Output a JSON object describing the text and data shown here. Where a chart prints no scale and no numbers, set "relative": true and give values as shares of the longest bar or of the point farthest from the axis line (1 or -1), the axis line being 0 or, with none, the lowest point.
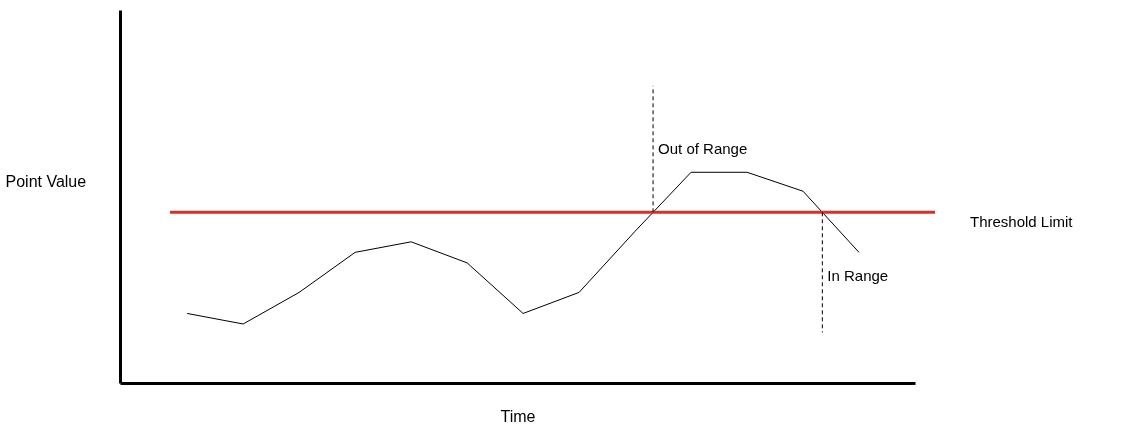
{
  "chart_data": {
    "type": "line",
    "relative": true,
    "xlabel": "Time",
    "ylabel": "Point Value",
    "categories": [
      null,
      null,
      null,
      null,
      null,
      null,
      null,
      null,
      null,
      null,
      null,
      null,
      null
    ],
    "series": [
      {
        "color": "#000000",
        "values": [
          0.33,
          0.28,
          0.43,
          0.62,
          0.67,
          0.57,
          0.33,
          0.43,
          0.72,
          1,
          1,
          0.91,
          0.62
        ]
      }
    ],
    "ref_lines": [
      {
        "axis": "y",
        "value": 0.81,
        "label": "Threshold Limit",
        "color": "#d93025"
      }
    ],
    "annotations": [
      "Out of Range",
      "In Range"
    ]
  }
}
